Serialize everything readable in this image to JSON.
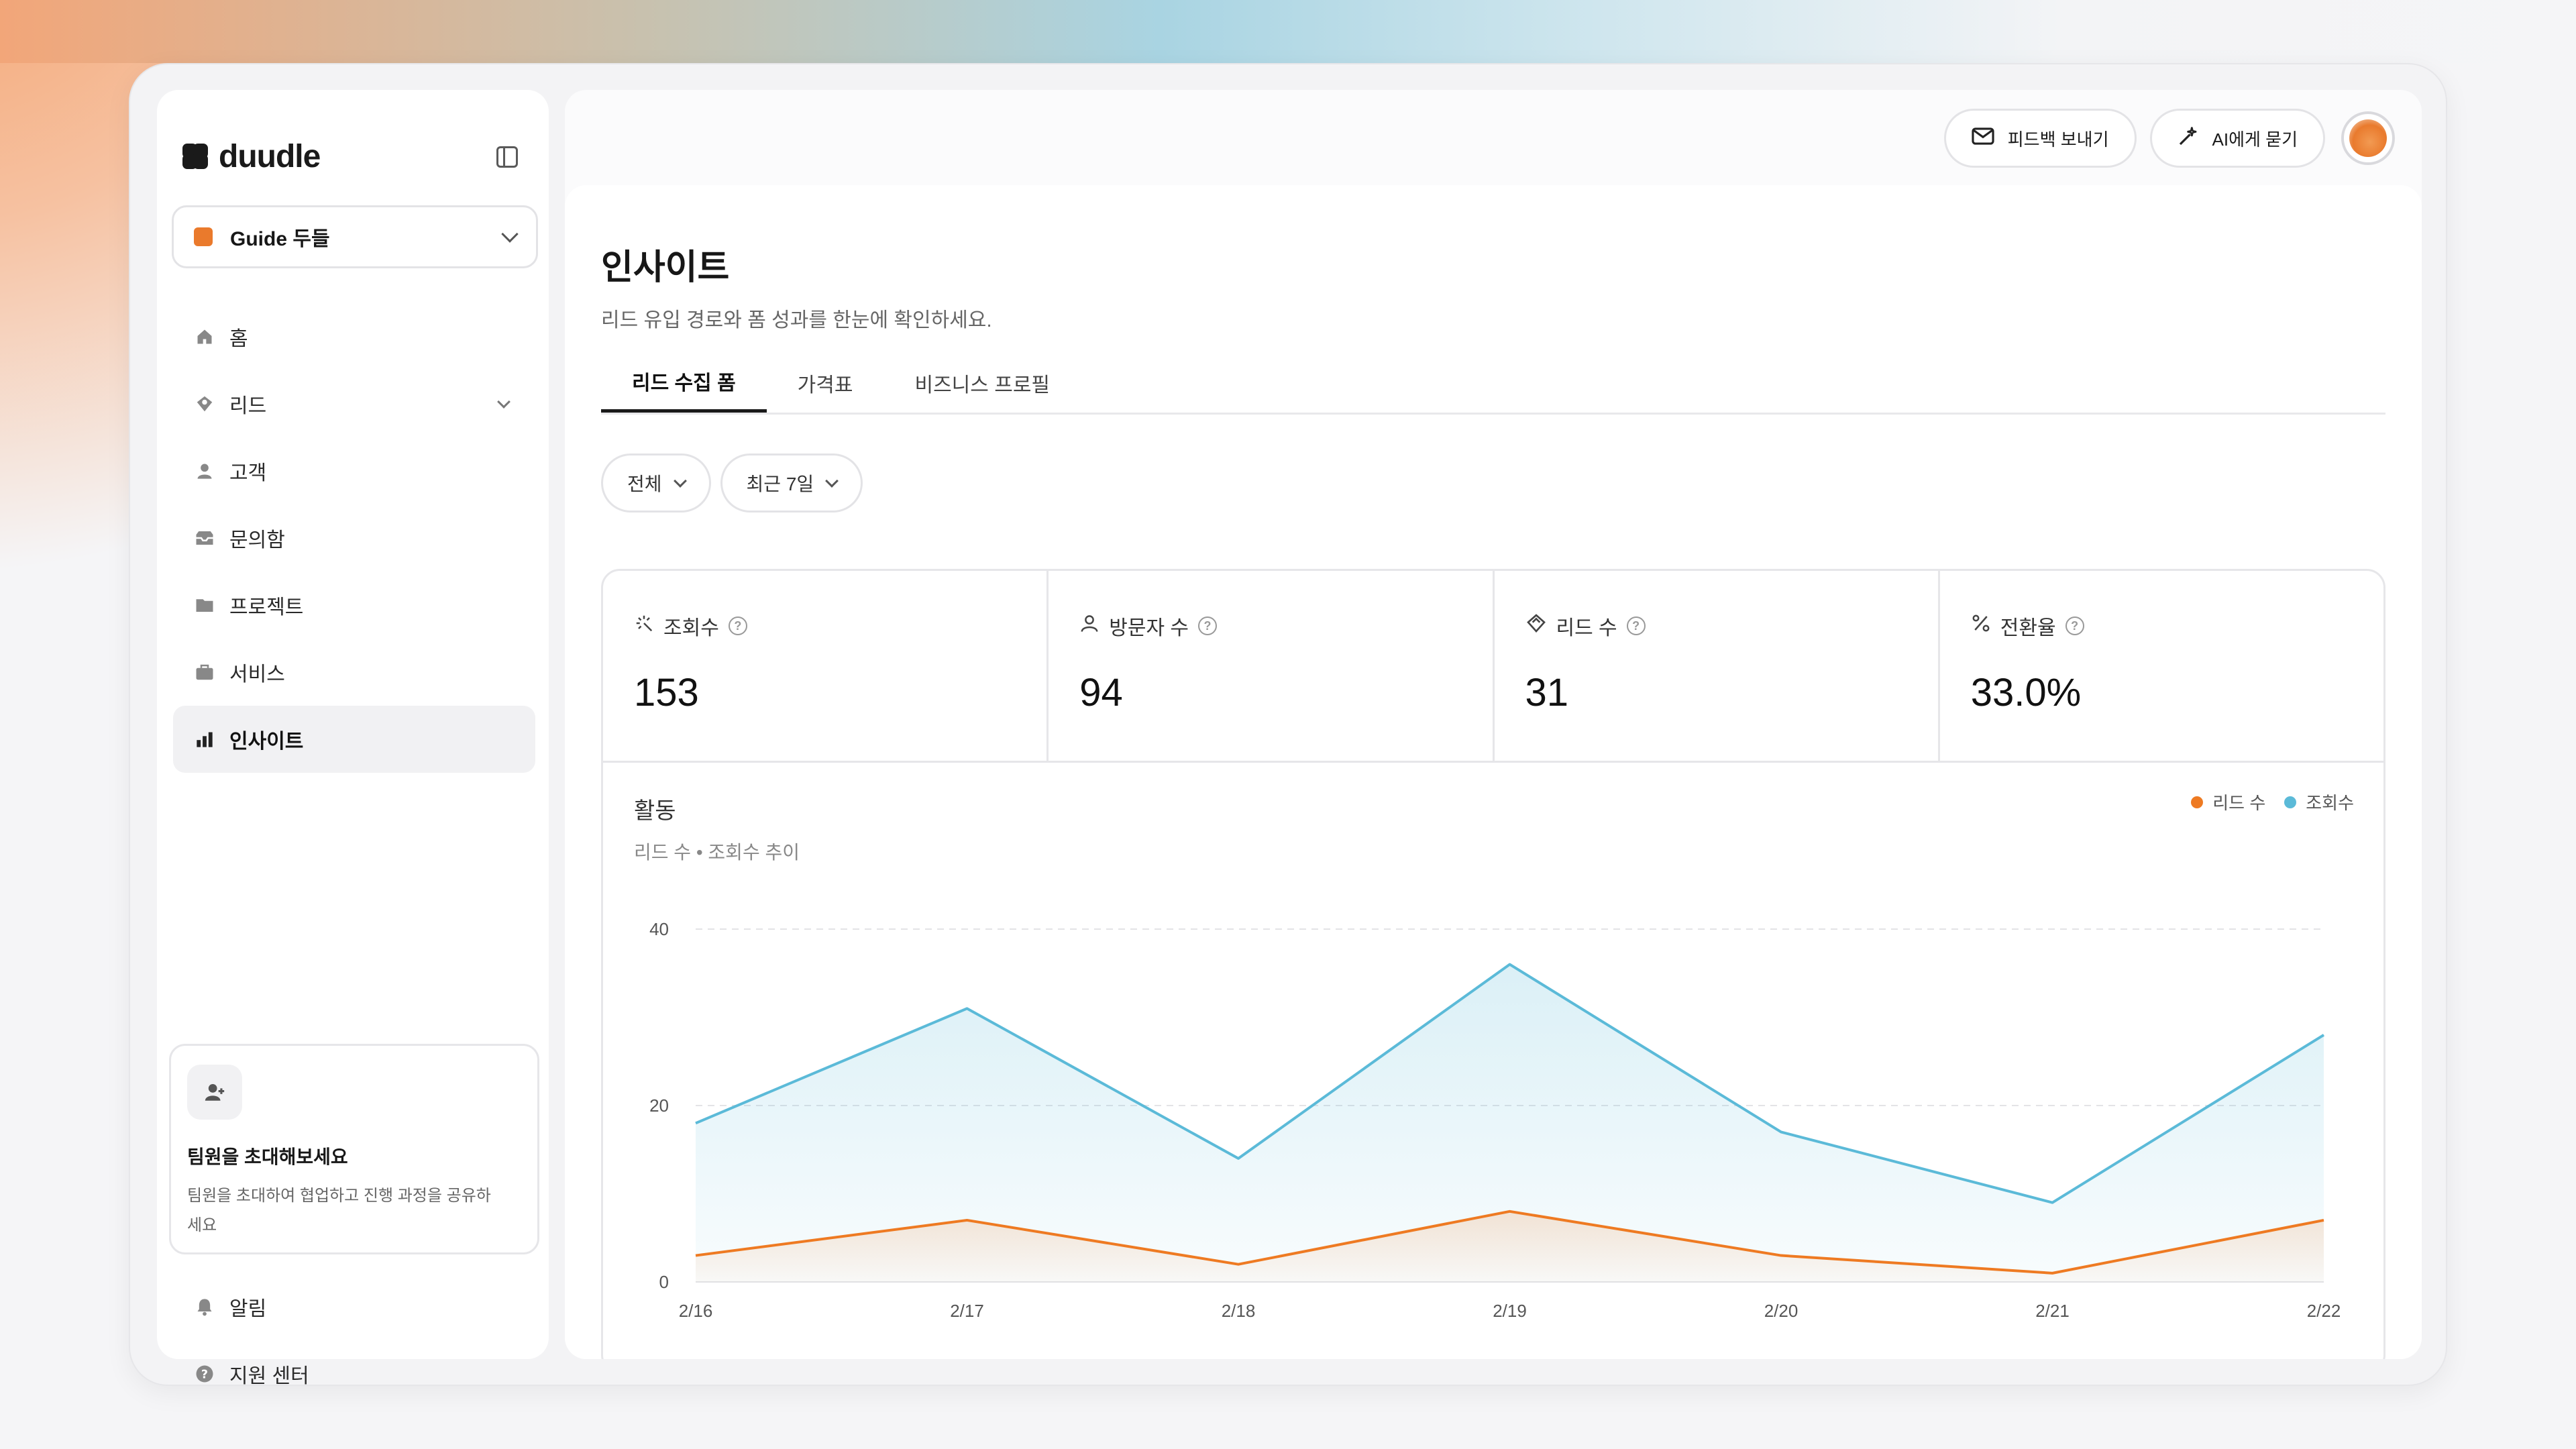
{
  "app": {
    "logo_text": "duudle"
  },
  "workspace": {
    "name": "Guide 두들"
  },
  "sidebar": {
    "items": [
      {
        "label": "홈",
        "icon": "home-icon"
      },
      {
        "label": "리드",
        "icon": "lead-icon"
      },
      {
        "label": "고객",
        "icon": "user-icon"
      },
      {
        "label": "문의함",
        "icon": "inbox-icon"
      },
      {
        "label": "프로젝트",
        "icon": "folder-icon"
      },
      {
        "label": "서비스",
        "icon": "briefcase-icon"
      },
      {
        "label": "인사이트",
        "icon": "bar-chart-icon"
      }
    ],
    "invite": {
      "title": "팀원을 초대해보세요",
      "desc": "팀원을 초대하여 협업하고 진행 과정을 공유하세요"
    },
    "bottom_items": [
      {
        "label": "알림",
        "icon": "bell-icon"
      },
      {
        "label": "지원 센터",
        "icon": "help-circle-icon"
      }
    ]
  },
  "topbar": {
    "feedback_label": "피드백 보내기",
    "ai_label": "AI에게 묻기"
  },
  "page": {
    "title": "인사이트",
    "subtitle": "리드 유입 경로와 폼 성과를 한눈에 확인하세요.",
    "tabs": [
      {
        "label": "리드 수집 폼"
      },
      {
        "label": "가격표"
      },
      {
        "label": "비즈니스 프로필"
      }
    ],
    "filters": [
      {
        "label": "전체"
      },
      {
        "label": "최근 7일"
      }
    ]
  },
  "stats": [
    {
      "label": "조회수",
      "value": "153"
    },
    {
      "label": "방문자 수",
      "value": "94"
    },
    {
      "label": "리드 수",
      "value": "31"
    },
    {
      "label": "전환율",
      "value": "33.0%"
    }
  ],
  "activity": {
    "title": "활동",
    "subtitle": "리드 수 • 조회수 추이"
  },
  "colors": {
    "leads": "#ee7a22",
    "views": "#5bbad8",
    "accent": "#ea7a2c"
  },
  "chart_data": {
    "type": "area",
    "categories": [
      "2/16",
      "2/17",
      "2/18",
      "2/19",
      "2/20",
      "2/21",
      "2/22"
    ],
    "series": [
      {
        "name": "리드 수",
        "values": [
          3,
          7,
          2,
          8,
          3,
          1,
          7
        ]
      },
      {
        "name": "조회수",
        "values": [
          18,
          31,
          14,
          36,
          17,
          9,
          28
        ]
      }
    ],
    "ylim": [
      0,
      40
    ],
    "yticks": [
      0,
      20,
      40
    ],
    "grid": true,
    "legend": "top-right"
  }
}
